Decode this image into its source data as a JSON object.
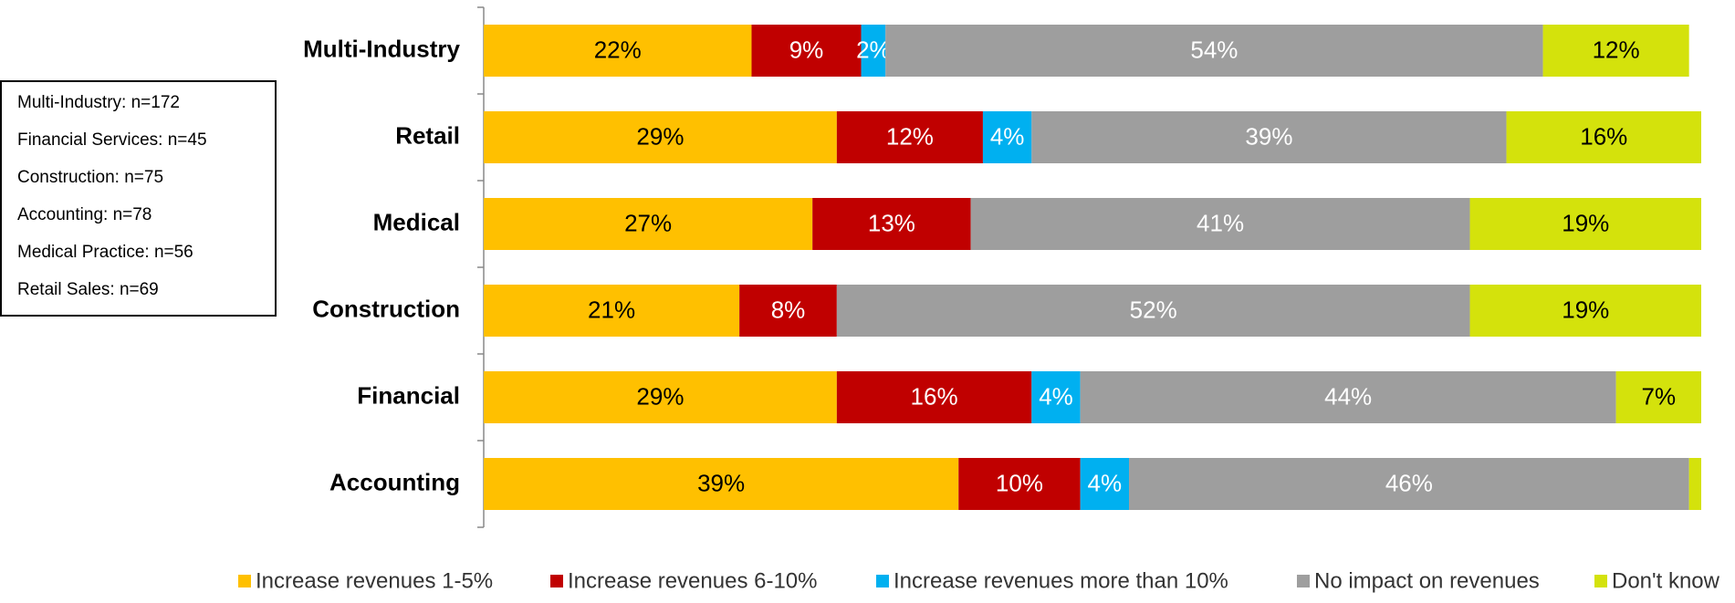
{
  "chart_data": {
    "type": "stacked-bar-horizontal",
    "categories": [
      "Multi-Industry",
      "Retail",
      "Medical",
      "Construction",
      "Financial",
      "Accounting"
    ],
    "xlim": [
      0,
      100
    ],
    "series": [
      {
        "name": "Increase revenues 1-5%",
        "color": "#FFC000",
        "values": [
          22,
          29,
          27,
          21,
          29,
          39
        ],
        "value_labels": [
          "22%",
          "29%",
          "27%",
          "21%",
          "29%",
          "39%"
        ]
      },
      {
        "name": "Increase revenues 6-10%",
        "color": "#C00000",
        "values": [
          9,
          12,
          13,
          8,
          16,
          10
        ],
        "value_labels": [
          "9%",
          "12%",
          "13%",
          "8%",
          "16%",
          "10%"
        ]
      },
      {
        "name": "Increase revenues more than 10%",
        "color": "#00B0F0",
        "values": [
          2,
          4,
          null,
          null,
          4,
          4
        ],
        "value_labels": [
          "2%",
          "4%",
          null,
          null,
          "4%",
          "4%"
        ]
      },
      {
        "name": "No impact on revenues",
        "color": "#9E9E9E",
        "values": [
          54,
          39,
          41,
          52,
          44,
          46
        ],
        "value_labels": [
          "54%",
          "39%",
          "41%",
          "52%",
          "44%",
          "46%"
        ]
      },
      {
        "name": "Don't know",
        "color": "#D4E20C",
        "values": [
          12,
          16,
          19,
          19,
          7,
          1
        ],
        "value_labels": [
          "12%",
          "16%",
          "19%",
          "19%",
          "7%",
          null
        ]
      }
    ],
    "annotations": [
      "Multi-Industry: n=172",
      "Financial Services: n=45",
      "Construction: n=75",
      "Accounting: n=78",
      "Medical Practice: n=56",
      "Retail Sales: n=69"
    ]
  }
}
